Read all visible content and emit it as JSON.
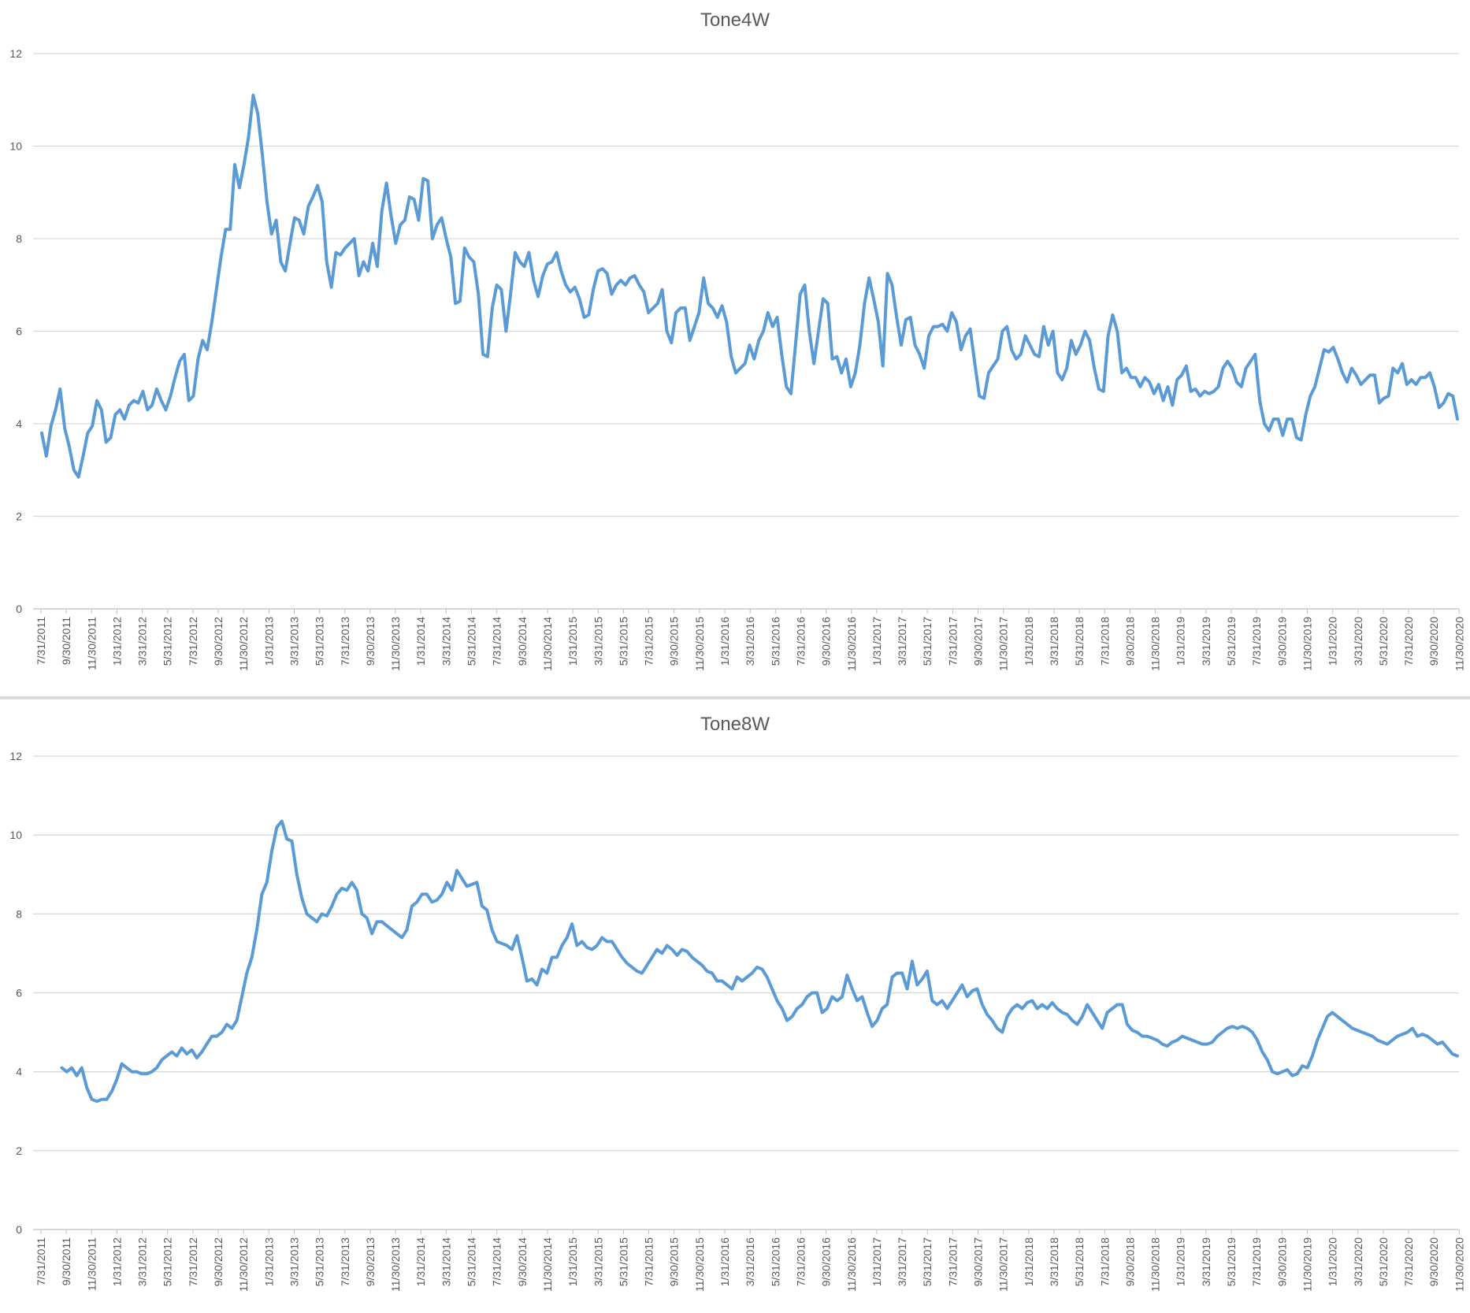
{
  "chart_data": [
    {
      "type": "line",
      "title": "Tone4W",
      "xlabel": "",
      "ylabel": "",
      "ylim": [
        0,
        12
      ],
      "yticks": [
        0,
        2,
        4,
        6,
        8,
        10,
        12
      ],
      "grid": true,
      "x_tick_labels": [
        "7/31/2011",
        "9/30/2011",
        "11/30/2011",
        "1/31/2012",
        "3/31/2012",
        "5/31/2012",
        "7/31/2012",
        "9/30/2012",
        "11/30/2012",
        "1/31/2013",
        "3/31/2013",
        "5/31/2013",
        "7/31/2013",
        "9/30/2013",
        "11/30/2013",
        "1/31/2014",
        "3/31/2014",
        "5/31/2014",
        "7/31/2014",
        "9/30/2014",
        "11/30/2014",
        "1/31/2015",
        "3/31/2015",
        "5/31/2015",
        "7/31/2015",
        "9/30/2015",
        "11/30/2015",
        "1/31/2016",
        "3/31/2016",
        "5/31/2016",
        "7/31/2016",
        "9/30/2016",
        "11/30/2016",
        "1/31/2017",
        "3/31/2017",
        "5/31/2017",
        "7/31/2017",
        "9/30/2017",
        "11/30/2017",
        "1/31/2018",
        "3/31/2018",
        "5/31/2018",
        "7/31/2018",
        "9/30/2018",
        "11/30/2018",
        "1/31/2019",
        "3/31/2019",
        "5/31/2019",
        "7/31/2019",
        "9/30/2019",
        "11/30/2019",
        "1/31/2020",
        "3/31/2020",
        "5/31/2020",
        "7/31/2020",
        "9/30/2020",
        "11/30/2020"
      ],
      "color": "#5b9bd5",
      "series": [
        {
          "values": [
            3.8,
            3.3,
            3.95,
            4.3,
            4.75,
            3.9,
            3.5,
            3.0,
            2.85,
            3.3,
            3.8,
            3.95,
            4.5,
            4.3,
            3.6,
            3.7,
            4.2,
            4.3,
            4.1,
            4.4,
            4.5,
            4.45,
            4.7,
            4.3,
            4.4,
            4.75,
            4.5,
            4.3,
            4.6,
            5.0,
            5.35,
            5.5,
            4.5,
            4.6,
            5.4,
            5.8,
            5.6,
            6.2,
            6.9,
            7.6,
            8.2,
            8.2,
            9.6,
            9.1,
            9.6,
            10.2,
            11.1,
            10.7,
            9.8,
            8.8,
            8.1,
            8.4,
            7.5,
            7.3,
            7.9,
            8.45,
            8.4,
            8.1,
            8.7,
            8.9,
            9.15,
            8.8,
            7.5,
            6.95,
            7.7,
            7.65,
            7.8,
            7.9,
            8.0,
            7.2,
            7.5,
            7.3,
            7.9,
            7.4,
            8.6,
            9.2,
            8.5,
            7.9,
            8.3,
            8.4,
            8.9,
            8.85,
            8.4,
            9.3,
            9.25,
            8.0,
            8.3,
            8.45,
            8.0,
            7.6,
            6.6,
            6.65,
            7.8,
            7.6,
            7.5,
            6.8,
            5.5,
            5.45,
            6.5,
            7.0,
            6.9,
            6.0,
            6.8,
            7.7,
            7.5,
            7.4,
            7.7,
            7.1,
            6.75,
            7.2,
            7.45,
            7.5,
            7.7,
            7.3,
            7.0,
            6.85,
            6.95,
            6.7,
            6.3,
            6.35,
            6.9,
            7.3,
            7.35,
            7.25,
            6.8,
            7.0,
            7.1,
            7.0,
            7.15,
            7.2,
            7.0,
            6.85,
            6.4,
            6.5,
            6.6,
            6.9,
            6.0,
            5.75,
            6.4,
            6.5,
            6.5,
            5.8,
            6.1,
            6.4,
            7.15,
            6.6,
            6.5,
            6.3,
            6.55,
            6.2,
            5.45,
            5.1,
            5.2,
            5.3,
            5.7,
            5.4,
            5.8,
            6.0,
            6.4,
            6.1,
            6.3,
            5.5,
            4.8,
            4.65,
            5.7,
            6.8,
            7.0,
            6.0,
            5.3,
            6.0,
            6.7,
            6.6,
            5.4,
            5.45,
            5.1,
            5.4,
            4.8,
            5.1,
            5.7,
            6.6,
            7.15,
            6.7,
            6.2,
            5.25,
            7.25,
            7.0,
            6.3,
            5.7,
            6.25,
            6.3,
            5.7,
            5.5,
            5.2,
            5.9,
            6.1,
            6.1,
            6.15,
            6.0,
            6.4,
            6.2,
            5.6,
            5.9,
            6.05,
            5.3,
            4.6,
            4.55,
            5.1,
            5.25,
            5.4,
            6.0,
            6.1,
            5.6,
            5.4,
            5.5,
            5.9,
            5.7,
            5.5,
            5.45,
            6.1,
            5.7,
            6.0,
            5.1,
            4.95,
            5.2,
            5.8,
            5.5,
            5.7,
            6.0,
            5.8,
            5.2,
            4.75,
            4.7,
            5.9,
            6.35,
            6.0,
            5.1,
            5.2,
            5.0,
            5.0,
            4.8,
            5.0,
            4.9,
            4.65,
            4.85,
            4.5,
            4.8,
            4.4,
            4.95,
            5.05,
            5.25,
            4.7,
            4.75,
            4.6,
            4.7,
            4.65,
            4.7,
            4.8,
            5.2,
            5.35,
            5.2,
            4.9,
            4.8,
            5.2,
            5.35,
            5.5,
            4.5,
            4.0,
            3.85,
            4.1,
            4.1,
            3.75,
            4.1,
            4.1,
            3.7,
            3.65,
            4.2,
            4.6,
            4.8,
            5.2,
            5.6,
            5.55,
            5.65,
            5.4,
            5.1,
            4.9,
            5.2,
            5.05,
            4.85,
            4.95,
            5.05,
            5.05,
            4.45,
            4.55,
            4.6,
            5.2,
            5.1,
            5.3,
            4.85,
            4.95,
            4.85,
            5.0,
            5.0,
            5.1,
            4.8,
            4.35,
            4.45,
            4.65,
            4.6,
            4.1
          ]
        }
      ]
    },
    {
      "type": "line",
      "title": "Tone8W",
      "xlabel": "",
      "ylabel": "",
      "ylim": [
        0,
        12
      ],
      "yticks": [
        0,
        2,
        4,
        6,
        8,
        10,
        12
      ],
      "grid": true,
      "x_tick_labels": [
        "7/31/2011",
        "9/30/2011",
        "11/30/2011",
        "1/31/2012",
        "3/31/2012",
        "5/31/2012",
        "7/31/2012",
        "9/30/2012",
        "11/30/2012",
        "1/31/2013",
        "3/31/2013",
        "5/31/2013",
        "7/31/2013",
        "9/30/2013",
        "11/30/2013",
        "1/31/2014",
        "3/31/2014",
        "5/31/2014",
        "7/31/2014",
        "9/30/2014",
        "11/30/2014",
        "1/31/2015",
        "3/31/2015",
        "5/31/2015",
        "7/31/2015",
        "9/30/2015",
        "11/30/2015",
        "1/31/2016",
        "3/31/2016",
        "5/31/2016",
        "7/31/2016",
        "9/30/2016",
        "11/30/2016",
        "1/31/2017",
        "3/31/2017",
        "5/31/2017",
        "7/31/2017",
        "9/30/2017",
        "11/30/2017",
        "1/31/2018",
        "3/31/2018",
        "5/31/2018",
        "7/31/2018",
        "9/30/2018",
        "11/30/2018",
        "1/31/2019",
        "3/31/2019",
        "5/31/2019",
        "7/31/2019",
        "9/30/2019",
        "11/30/2019",
        "1/31/2020",
        "3/31/2020",
        "5/31/2020",
        "7/31/2020",
        "9/30/2020",
        "11/30/2020"
      ],
      "color": "#5b9bd5",
      "series": [
        {
          "values": [
            null,
            null,
            null,
            null,
            4.1,
            4.0,
            4.1,
            3.9,
            4.1,
            3.6,
            3.3,
            3.25,
            3.3,
            3.3,
            3.5,
            3.8,
            4.2,
            4.1,
            4.0,
            4.0,
            3.95,
            3.95,
            4.0,
            4.1,
            4.3,
            4.4,
            4.5,
            4.4,
            4.6,
            4.45,
            4.55,
            4.35,
            4.5,
            4.7,
            4.9,
            4.9,
            5.0,
            5.2,
            5.1,
            5.3,
            5.9,
            6.5,
            6.9,
            7.6,
            8.5,
            8.8,
            9.6,
            10.2,
            10.35,
            9.9,
            9.85,
            9.0,
            8.4,
            8.0,
            7.9,
            7.8,
            8.0,
            7.95,
            8.2,
            8.5,
            8.65,
            8.6,
            8.8,
            8.6,
            8.0,
            7.9,
            7.5,
            7.8,
            7.8,
            7.7,
            7.6,
            7.5,
            7.4,
            7.6,
            8.2,
            8.3,
            8.5,
            8.5,
            8.3,
            8.35,
            8.5,
            8.8,
            8.6,
            9.1,
            8.9,
            8.7,
            8.75,
            8.8,
            8.2,
            8.1,
            7.6,
            7.3,
            7.25,
            7.2,
            7.1,
            7.45,
            6.9,
            6.3,
            6.35,
            6.2,
            6.6,
            6.5,
            6.9,
            6.9,
            7.2,
            7.4,
            7.75,
            7.2,
            7.3,
            7.15,
            7.1,
            7.2,
            7.4,
            7.3,
            7.3,
            7.1,
            6.9,
            6.75,
            6.65,
            6.55,
            6.5,
            6.7,
            6.9,
            7.1,
            7.0,
            7.2,
            7.1,
            6.95,
            7.1,
            7.05,
            6.9,
            6.8,
            6.7,
            6.55,
            6.5,
            6.3,
            6.3,
            6.2,
            6.1,
            6.4,
            6.3,
            6.4,
            6.5,
            6.65,
            6.6,
            6.4,
            6.1,
            5.8,
            5.6,
            5.3,
            5.4,
            5.6,
            5.7,
            5.9,
            6.0,
            6.0,
            5.5,
            5.6,
            5.9,
            5.8,
            5.9,
            6.45,
            6.1,
            5.8,
            5.9,
            5.5,
            5.15,
            5.3,
            5.6,
            5.7,
            6.4,
            6.5,
            6.5,
            6.1,
            6.8,
            6.2,
            6.35,
            6.55,
            5.8,
            5.7,
            5.8,
            5.6,
            5.8,
            6.0,
            6.2,
            5.9,
            6.05,
            6.1,
            5.7,
            5.45,
            5.3,
            5.1,
            5.0,
            5.4,
            5.6,
            5.7,
            5.6,
            5.75,
            5.8,
            5.6,
            5.7,
            5.6,
            5.75,
            5.6,
            5.5,
            5.45,
            5.3,
            5.2,
            5.4,
            5.7,
            5.5,
            5.3,
            5.1,
            5.5,
            5.6,
            5.7,
            5.7,
            5.2,
            5.05,
            5.0,
            4.9,
            4.9,
            4.85,
            4.8,
            4.7,
            4.65,
            4.75,
            4.8,
            4.9,
            4.85,
            4.8,
            4.75,
            4.7,
            4.7,
            4.75,
            4.9,
            5.0,
            5.1,
            5.15,
            5.1,
            5.15,
            5.1,
            5.0,
            4.8,
            4.5,
            4.3,
            4.0,
            3.95,
            4.0,
            4.05,
            3.9,
            3.95,
            4.15,
            4.1,
            4.4,
            4.8,
            5.1,
            5.4,
            5.5,
            5.4,
            5.3,
            5.2,
            5.1,
            5.05,
            5.0,
            4.95,
            4.9,
            4.8,
            4.75,
            4.7,
            4.8,
            4.9,
            4.95,
            5.0,
            5.1,
            4.9,
            4.95,
            4.9,
            4.8,
            4.7,
            4.75,
            4.6,
            4.45,
            4.4
          ]
        }
      ]
    }
  ]
}
